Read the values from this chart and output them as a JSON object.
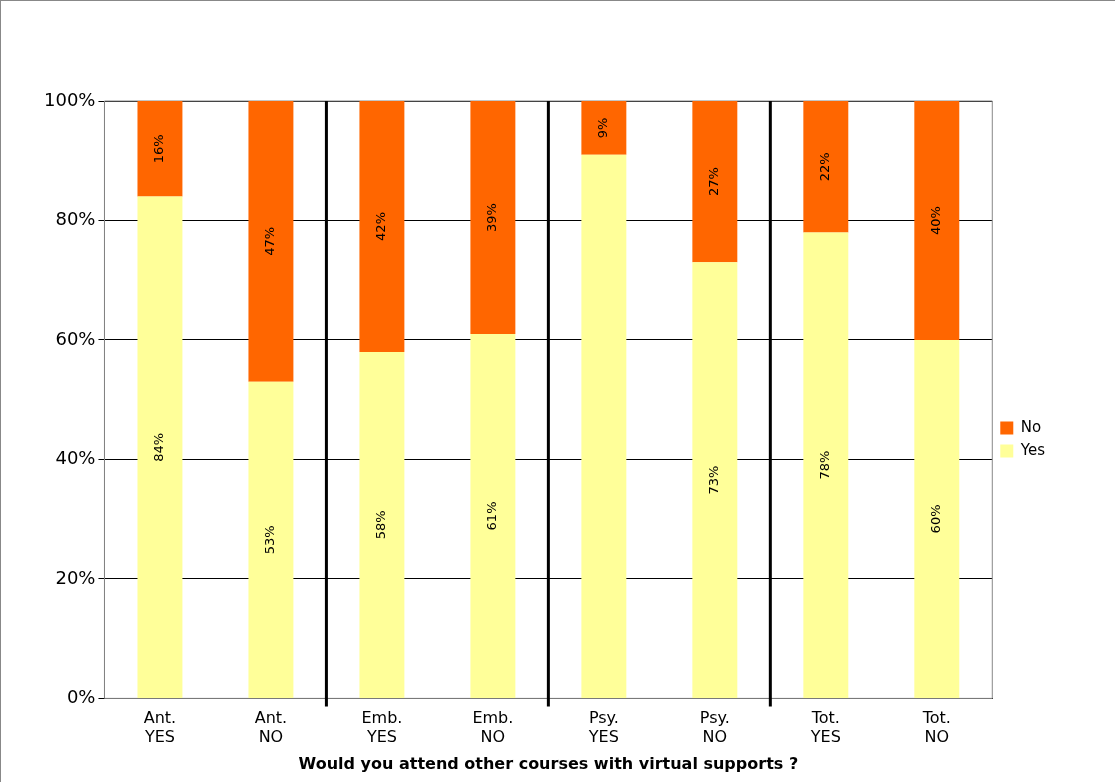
{
  "chart_data": {
    "type": "bar",
    "stacked": true,
    "xlabel": "Would you attend other courses with virtual supports ?",
    "categories": [
      "Ant. YES",
      "Ant. NO",
      "Emb. YES",
      "Emb. NO",
      "Psy. YES",
      "Psy. NO",
      "Tot. YES",
      "Tot. NO"
    ],
    "series": [
      {
        "name": "Yes",
        "color": "#ffff99",
        "values": [
          84,
          53,
          58,
          61,
          91,
          73,
          78,
          60
        ],
        "value_labels": [
          "84%",
          "53%",
          "58%",
          "61%",
          null,
          "73%",
          "78%",
          "60%"
        ]
      },
      {
        "name": "No",
        "color": "#ff6600",
        "values": [
          16,
          47,
          42,
          39,
          9,
          27,
          22,
          40
        ],
        "value_labels": [
          "16%",
          "47%",
          "42%",
          "39%",
          "9%",
          "27%",
          "22%",
          "40%"
        ]
      }
    ],
    "ylim": [
      0,
      100
    ],
    "yticks": [
      {
        "value": 0,
        "label": "0%"
      },
      {
        "value": 20,
        "label": "20%"
      },
      {
        "value": 40,
        "label": "40%"
      },
      {
        "value": 60,
        "label": "60%"
      },
      {
        "value": 80,
        "label": "80%"
      },
      {
        "value": 100,
        "label": "100%"
      }
    ],
    "grid": "y",
    "legend": "right"
  }
}
